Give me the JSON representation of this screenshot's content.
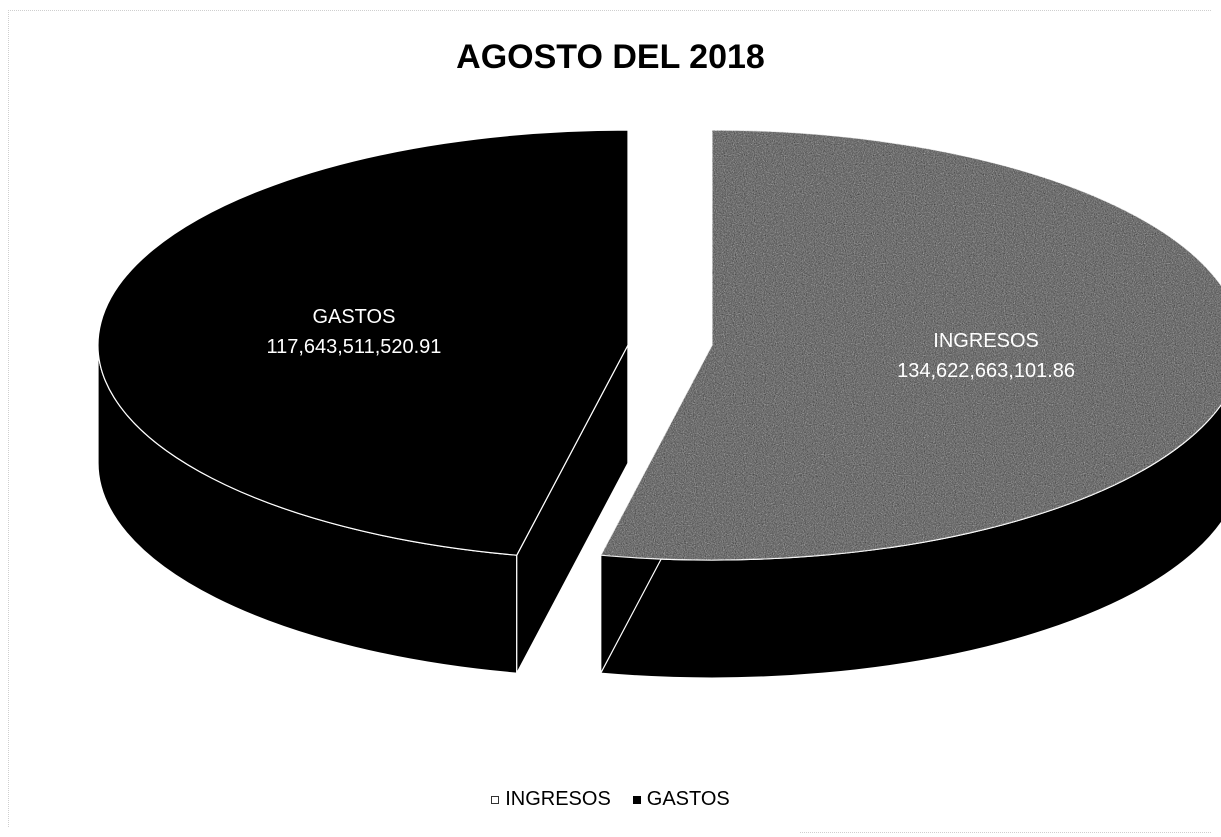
{
  "chart_data": {
    "type": "pie",
    "title": "AGOSTO DEL 2018",
    "categories": [
      "INGRESOS",
      "GASTOS"
    ],
    "values": [
      134622663101.86,
      117643511520.91
    ],
    "data_labels": [
      {
        "name": "INGRESOS",
        "value_text": "134,622,663,101.86"
      },
      {
        "name": "GASTOS",
        "value_text": "117,643,511,520.91"
      }
    ],
    "legend": {
      "position": "bottom",
      "entries": [
        "INGRESOS",
        "GASTOS"
      ]
    },
    "colors": {
      "INGRESOS": "#4a4a4a",
      "GASTOS": "#000000"
    }
  }
}
